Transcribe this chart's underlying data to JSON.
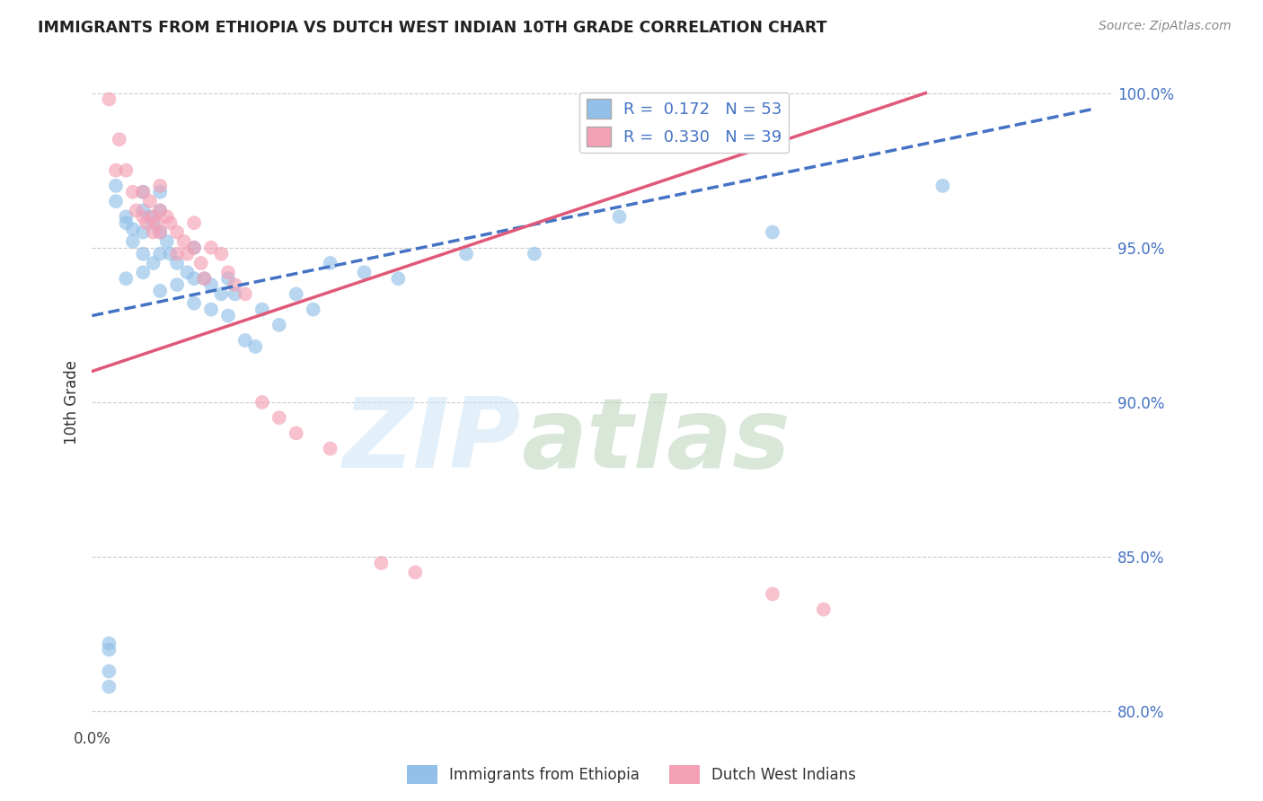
{
  "title": "IMMIGRANTS FROM ETHIOPIA VS DUTCH WEST INDIAN 10TH GRADE CORRELATION CHART",
  "source": "Source: ZipAtlas.com",
  "ylabel": "10th Grade",
  "xlim": [
    0.0,
    0.3
  ],
  "ylim": [
    0.795,
    1.005
  ],
  "ytick_vals": [
    0.8,
    0.85,
    0.9,
    0.95,
    1.0
  ],
  "ytick_labels": [
    "80.0%",
    "85.0%",
    "90.0%",
    "95.0%",
    "100.0%"
  ],
  "blue_R": 0.172,
  "blue_N": 53,
  "pink_R": 0.33,
  "pink_N": 39,
  "blue_color": "#92C0E8",
  "pink_color": "#F4A0B5",
  "blue_line_color": "#4472C4",
  "pink_line_color": "#E05878",
  "blue_scatter_x": [
    0.005,
    0.005,
    0.005,
    0.005,
    0.007,
    0.007,
    0.01,
    0.01,
    0.01,
    0.012,
    0.012,
    0.015,
    0.015,
    0.015,
    0.015,
    0.015,
    0.017,
    0.018,
    0.018,
    0.02,
    0.02,
    0.02,
    0.02,
    0.02,
    0.022,
    0.023,
    0.025,
    0.025,
    0.028,
    0.03,
    0.03,
    0.03,
    0.033,
    0.035,
    0.035,
    0.038,
    0.04,
    0.04,
    0.042,
    0.045,
    0.048,
    0.05,
    0.055,
    0.06,
    0.065,
    0.07,
    0.08,
    0.09,
    0.11,
    0.13,
    0.155,
    0.2,
    0.25
  ],
  "blue_scatter_y": [
    0.808,
    0.813,
    0.82,
    0.822,
    0.97,
    0.965,
    0.96,
    0.958,
    0.94,
    0.956,
    0.952,
    0.968,
    0.962,
    0.955,
    0.948,
    0.942,
    0.96,
    0.958,
    0.945,
    0.968,
    0.962,
    0.955,
    0.948,
    0.936,
    0.952,
    0.948,
    0.945,
    0.938,
    0.942,
    0.95,
    0.94,
    0.932,
    0.94,
    0.938,
    0.93,
    0.935,
    0.94,
    0.928,
    0.935,
    0.92,
    0.918,
    0.93,
    0.925,
    0.935,
    0.93,
    0.945,
    0.942,
    0.94,
    0.948,
    0.948,
    0.96,
    0.955,
    0.97
  ],
  "pink_scatter_x": [
    0.005,
    0.007,
    0.008,
    0.01,
    0.012,
    0.013,
    0.015,
    0.015,
    0.016,
    0.017,
    0.018,
    0.018,
    0.019,
    0.02,
    0.02,
    0.02,
    0.022,
    0.023,
    0.025,
    0.025,
    0.027,
    0.028,
    0.03,
    0.03,
    0.032,
    0.033,
    0.035,
    0.038,
    0.04,
    0.042,
    0.045,
    0.05,
    0.055,
    0.06,
    0.07,
    0.085,
    0.095,
    0.2,
    0.215
  ],
  "pink_scatter_y": [
    0.998,
    0.975,
    0.985,
    0.975,
    0.968,
    0.962,
    0.968,
    0.96,
    0.958,
    0.965,
    0.96,
    0.955,
    0.958,
    0.97,
    0.962,
    0.955,
    0.96,
    0.958,
    0.955,
    0.948,
    0.952,
    0.948,
    0.958,
    0.95,
    0.945,
    0.94,
    0.95,
    0.948,
    0.942,
    0.938,
    0.935,
    0.9,
    0.895,
    0.89,
    0.885,
    0.848,
    0.845,
    0.838,
    0.833
  ],
  "blue_line_x0": 0.0,
  "blue_line_x1": 0.295,
  "blue_line_y0": 0.928,
  "blue_line_y1": 0.995,
  "pink_line_x0": 0.0,
  "pink_line_x1": 0.245,
  "pink_line_y0": 0.91,
  "pink_line_y1": 1.0
}
